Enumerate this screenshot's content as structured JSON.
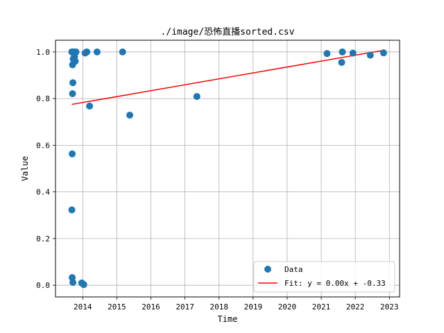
{
  "chart_data": {
    "type": "scatter",
    "title": "./image/恐怖直播sorted.csv",
    "xlabel": "Time",
    "ylabel": "Value",
    "xlim": [
      2013.2,
      2023.3
    ],
    "ylim": [
      -0.05,
      1.05
    ],
    "x_ticks": [
      2014,
      2015,
      2016,
      2017,
      2018,
      2019,
      2020,
      2021,
      2022,
      2023
    ],
    "y_ticks": [
      0.0,
      0.2,
      0.4,
      0.6,
      0.8,
      1.0
    ],
    "y_tick_labels": [
      "0.0",
      "0.2",
      "0.4",
      "0.6",
      "0.8",
      "1.0"
    ],
    "grid": true,
    "legend_position": "lower-right",
    "series": [
      {
        "name": "Data",
        "kind": "scatter",
        "color": "#1f77b4",
        "x": [
          2013.68,
          2013.69,
          2013.7,
          2013.72,
          2013.73,
          2013.74,
          2013.75,
          2013.76,
          2013.78,
          2013.8,
          2013.7,
          2013.72,
          2013.71,
          2013.7,
          2013.69,
          2013.68,
          2013.69,
          2013.71,
          2013.97,
          2014.03,
          2014.07,
          2014.1,
          2014.12,
          2014.2,
          2014.42,
          2015.17,
          2015.38,
          2017.35,
          2021.17,
          2021.6,
          2021.62,
          2021.93,
          2022.44,
          2022.83
        ],
        "y": [
          1.0,
          1.0,
          1.0,
          1.0,
          1.0,
          1.0,
          0.99,
          0.98,
          0.96,
          1.0,
          0.945,
          0.97,
          0.868,
          0.821,
          0.563,
          0.323,
          0.033,
          0.012,
          0.01,
          0.003,
          0.995,
          0.998,
          1.0,
          0.768,
          1.0,
          1.0,
          0.729,
          0.809,
          0.993,
          0.955,
          1.0,
          0.995,
          0.986,
          0.996
        ]
      },
      {
        "name": "Fit: y = 0.00x + -0.33",
        "kind": "line",
        "color": "#ff0000",
        "x": [
          2013.68,
          2022.83
        ],
        "y": [
          0.775,
          1.007
        ]
      }
    ]
  }
}
